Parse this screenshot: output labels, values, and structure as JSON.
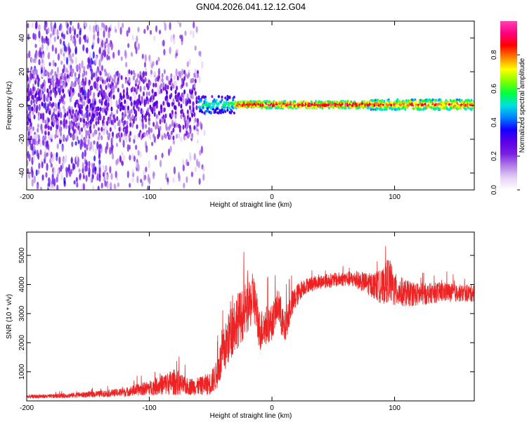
{
  "figure": {
    "title": "GN04.2026.041.12.12.G04"
  },
  "colorbar": {
    "label": "Normalized spectral amplitude",
    "ticks": [
      "0.0",
      "0.2",
      "0.4",
      "0.6",
      "0.8"
    ],
    "tick_values": [
      0.0,
      0.2,
      0.4,
      0.6,
      0.8
    ],
    "range": [
      0,
      1
    ],
    "colors": [
      "#ffffff",
      "#e6d2f5",
      "#b27ee8",
      "#7a1fe0",
      "#5a00e8",
      "#1400ff",
      "#0080ff",
      "#00e0e0",
      "#00ff40",
      "#80ff00",
      "#ffff00",
      "#ff8000",
      "#ff0000",
      "#ff0080",
      "#ff40b0"
    ]
  },
  "chart_data": [
    {
      "type": "heatmap",
      "title": "",
      "xlabel": "Height of straight line (km)",
      "ylabel": "Frequency (Hz)",
      "xlim": [
        -200,
        165
      ],
      "ylim": [
        -50,
        50
      ],
      "xticks": [
        "-200",
        "-100",
        "0",
        "100"
      ],
      "xtick_values": [
        -200,
        -100,
        0,
        100
      ],
      "yticks": [
        "-40",
        "-20",
        "0",
        "20",
        "40"
      ],
      "ytick_values": [
        -40,
        -20,
        0,
        20,
        40
      ],
      "description_of_field": "noisy scattered low-amplitude energy for heights below about -60 km, converging into a narrow band near 0 Hz; strong narrow band (normalized amplitude ~0.8-1.0) near 0 Hz from about -50 km to 165 km",
      "band": {
        "center_hz": 0.5,
        "segments": [
          {
            "x": [
              -200,
              -60
            ],
            "amp": 0.25,
            "spread_hz": 20
          },
          {
            "x": [
              -60,
              -30
            ],
            "amp": 0.55,
            "spread_hz": 5
          },
          {
            "x": [
              -30,
              80
            ],
            "amp": 0.95,
            "spread_hz": 2
          },
          {
            "x": [
              80,
              165
            ],
            "amp": 0.85,
            "spread_hz": 3
          }
        ]
      }
    },
    {
      "type": "line",
      "title": "",
      "xlabel": "Height of straight line (km)",
      "ylabel": "SNR (10 * v/v)",
      "xlim": [
        -200,
        165
      ],
      "ylim": [
        0,
        5800
      ],
      "xticks": [
        "-200",
        "-100",
        "0",
        "100"
      ],
      "xtick_values": [
        -200,
        -100,
        0,
        100
      ],
      "yticks": [
        "1000",
        "2000",
        "3000",
        "4000",
        "5000"
      ],
      "ytick_values": [
        1000,
        2000,
        3000,
        4000,
        5000
      ],
      "series": [
        {
          "name": "SNR",
          "color": "#ee2222",
          "x": [
            -200,
            -180,
            -160,
            -140,
            -120,
            -100,
            -90,
            -80,
            -70,
            -60,
            -50,
            -45,
            -40,
            -35,
            -30,
            -25,
            -20,
            -15,
            -10,
            -5,
            0,
            5,
            10,
            15,
            20,
            25,
            30,
            40,
            50,
            60,
            70,
            80,
            90,
            95,
            100,
            110,
            120,
            130,
            140,
            150,
            165
          ],
          "values": [
            150,
            160,
            200,
            240,
            300,
            450,
            550,
            650,
            500,
            500,
            600,
            900,
            1600,
            2200,
            2700,
            2900,
            3100,
            3600,
            2400,
            2600,
            2700,
            3300,
            2400,
            3200,
            3600,
            3900,
            4000,
            4100,
            4150,
            4200,
            4150,
            4000,
            3900,
            4200,
            3800,
            3700,
            3650,
            3700,
            3750,
            3700,
            3700
          ],
          "noise_amplitude": [
            60,
            70,
            90,
            110,
            150,
            250,
            350,
            450,
            300,
            300,
            400,
            500,
            800,
            900,
            1000,
            900,
            800,
            900,
            700,
            700,
            600,
            600,
            600,
            500,
            400,
            300,
            250,
            250,
            250,
            250,
            300,
            400,
            600,
            800,
            600,
            450,
            400,
            350,
            350,
            300,
            300
          ]
        }
      ]
    }
  ]
}
